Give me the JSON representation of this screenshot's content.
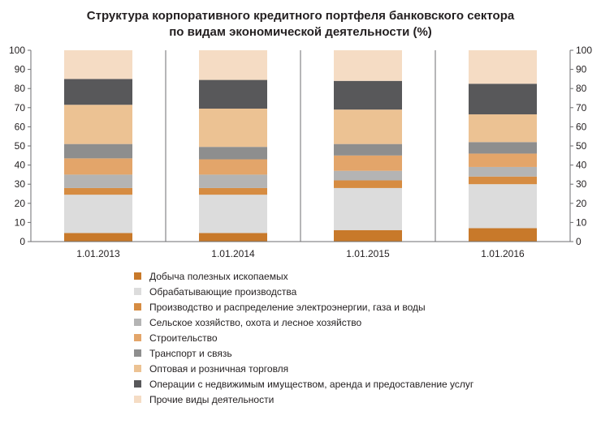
{
  "title": {
    "line1": "Структура корпоративного кредитного портфеля банковского сектора",
    "line2": "по видам экономической деятельности (%)"
  },
  "chart_data": {
    "type": "bar",
    "stacked": true,
    "title": "Структура корпоративного кредитного портфеля банковского сектора по видам экономической деятельности (%)",
    "categories": [
      "1.01.2013",
      "1.01.2014",
      "1.01.2015",
      "1.01.2016"
    ],
    "ylim": [
      0,
      100
    ],
    "yticks": [
      0,
      10,
      20,
      30,
      40,
      50,
      60,
      70,
      80,
      90,
      100
    ],
    "y_axis_both_sides": true,
    "grid": false,
    "legend_position": "bottom",
    "series": [
      {
        "name": "Добыча полезных ископаемых",
        "color": "#c8792a",
        "values": [
          4.5,
          4.5,
          6,
          7
        ]
      },
      {
        "name": "Обрабатывающие производства",
        "color": "#dcdcdc",
        "values": [
          20,
          20,
          22,
          23
        ]
      },
      {
        "name": "Производство и распределение электроэнергии, газа и воды",
        "color": "#d68c42",
        "values": [
          3.5,
          3.5,
          4,
          4
        ]
      },
      {
        "name": "Сельское хозяйство, охота и лесное хозяйство",
        "color": "#b4b4b4",
        "values": [
          7,
          7,
          5,
          5
        ]
      },
      {
        "name": "Строительство",
        "color": "#e3a56a",
        "values": [
          8.5,
          8,
          8,
          7
        ]
      },
      {
        "name": "Транспорт и связь",
        "color": "#8e8e8e",
        "values": [
          7.5,
          6.5,
          6,
          6
        ]
      },
      {
        "name": "Оптовая и розничная торговля",
        "color": "#ecc293",
        "values": [
          20.5,
          20,
          18,
          14.5
        ]
      },
      {
        "name": "Операции с недвижимым имуществом, аренда и предоставление услуг",
        "color": "#58585a",
        "values": [
          13.5,
          15,
          15,
          16
        ]
      },
      {
        "name": "Прочие виды деятельности",
        "color": "#f5dcc4",
        "values": [
          15,
          15.5,
          16,
          17.5
        ]
      }
    ]
  }
}
